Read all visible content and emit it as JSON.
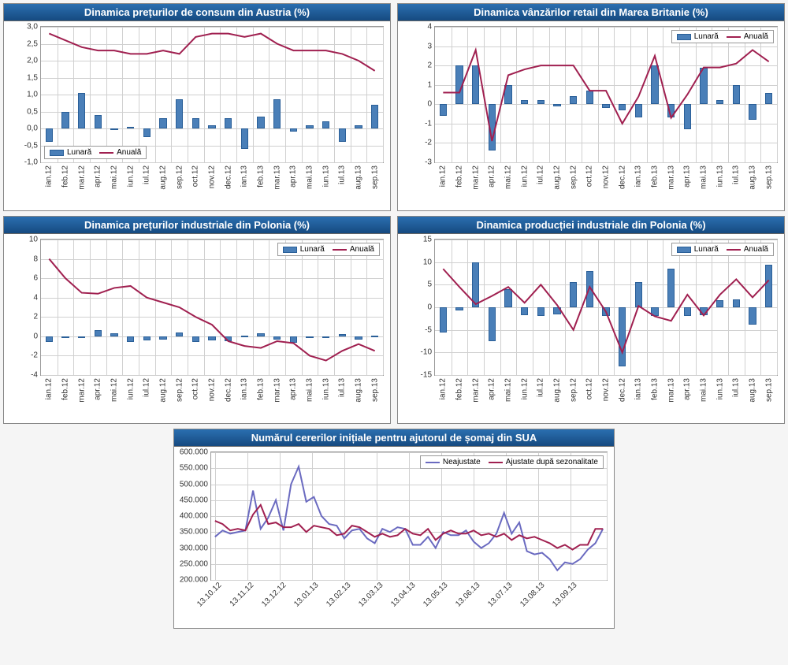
{
  "global": {
    "title_bg": "#1a5490",
    "title_color": "#ffffff",
    "title_fontsize": 13,
    "panel_bg": "#ffffff",
    "panel_border": "#888888",
    "grid_color": "#d0d0d0",
    "tick_fontsize": 10,
    "tick_color": "#333333",
    "bar_fill": "#4a7fb8",
    "bar_border": "#2a5f98",
    "line_primary": "#a02050",
    "line_secondary": "#6a6ac0",
    "legend_border": "#999999",
    "legend_bg": "#ffffff",
    "x_label_rotation": -90,
    "x_label_rotation_diag": -45
  },
  "months": [
    "ian.12",
    "feb.12",
    "mar.12",
    "apr.12",
    "mai.12",
    "iun.12",
    "iul.12",
    "aug.12",
    "sep.12",
    "oct.12",
    "nov.12",
    "dec.12",
    "ian.13",
    "feb.13",
    "mar.13",
    "apr.13",
    "mai.13",
    "iun.13",
    "iul.13",
    "aug.13",
    "sep.13"
  ],
  "charts": {
    "austria": {
      "type": "bar+line",
      "title": "Dinamica prețurilor de consum din Austria (%)",
      "ylim": [
        -1.0,
        3.0
      ],
      "ytick_step": 0.5,
      "yticks": [
        "-1,0",
        "-0,5",
        "0,0",
        "0,5",
        "1,0",
        "1,5",
        "2,0",
        "2,5",
        "3,0"
      ],
      "bars": [
        -0.4,
        0.5,
        1.05,
        0.4,
        -0.05,
        0.05,
        -0.25,
        0.3,
        0.85,
        0.3,
        0.1,
        0.3,
        -0.6,
        0.35,
        0.85,
        -0.1,
        0.1,
        0.2,
        -0.4,
        0.1,
        0.7
      ],
      "line": [
        2.8,
        2.6,
        2.4,
        2.3,
        2.3,
        2.2,
        2.2,
        2.3,
        2.2,
        2.7,
        2.8,
        2.8,
        2.7,
        2.8,
        2.5,
        2.3,
        2.3,
        2.3,
        2.2,
        2.0,
        1.7
      ],
      "legend": {
        "bar": "Lunară",
        "line": "Anuală",
        "position": "bottom-left"
      }
    },
    "uk_retail": {
      "type": "bar+line",
      "title": "Dinamica vânzărilor retail din Marea Britanie (%)",
      "ylim": [
        -3,
        4
      ],
      "ytick_step": 1,
      "yticks": [
        "-3",
        "-2",
        "-1",
        "0",
        "1",
        "2",
        "3",
        "4"
      ],
      "bars": [
        -0.6,
        2.0,
        2.0,
        -2.4,
        1.0,
        0.2,
        0.2,
        -0.1,
        0.4,
        0.7,
        -0.2,
        -0.3,
        -0.7,
        2.0,
        -0.7,
        -1.3,
        1.9,
        0.2,
        1.0,
        -0.8,
        0.6
      ],
      "line": [
        0.6,
        0.6,
        2.8,
        -1.9,
        1.5,
        1.8,
        2.0,
        2.0,
        2.0,
        0.7,
        0.7,
        -1.0,
        0.4,
        2.5,
        -0.7,
        0.5,
        1.9,
        1.9,
        2.1,
        2.8,
        2.2
      ],
      "legend": {
        "bar": "Lunară",
        "line": "Anuală",
        "position": "top-right"
      }
    },
    "poland_prices": {
      "type": "bar+line",
      "title": "Dinamica prețurilor industriale din Polonia (%)",
      "ylim": [
        -4,
        10
      ],
      "ytick_step": 2,
      "yticks": [
        "-4",
        "-2",
        "0",
        "2",
        "4",
        "6",
        "8",
        "10"
      ],
      "bars": [
        -0.6,
        -0.2,
        0.0,
        0.6,
        0.3,
        -0.6,
        -0.4,
        -0.3,
        0.4,
        -0.6,
        -0.4,
        -0.5,
        0.1,
        0.3,
        -0.3,
        -0.7,
        -0.1,
        0.0,
        0.2,
        -0.3,
        0.1
      ],
      "line": [
        8.0,
        6.0,
        4.5,
        4.4,
        5.0,
        5.2,
        4.0,
        3.5,
        3.0,
        2.0,
        1.2,
        -0.5,
        -1.0,
        -1.2,
        -0.5,
        -0.7,
        -2.0,
        -2.5,
        -1.5,
        -0.8,
        -1.5
      ],
      "legend": {
        "bar": "Lunară",
        "line": "Anuală",
        "position": "top-right"
      }
    },
    "poland_prod": {
      "type": "bar+line",
      "title": "Dinamica producției industriale din Polonia (%)",
      "ylim": [
        -15,
        15
      ],
      "ytick_step": 5,
      "yticks": [
        "-15",
        "-10",
        "-5",
        "0",
        "5",
        "10",
        "15"
      ],
      "bars": [
        -5.5,
        -0.7,
        10.0,
        -7.5,
        4.0,
        -1.8,
        -2.0,
        -1.5,
        5.5,
        8.0,
        -2.0,
        -13.0,
        5.5,
        -2.0,
        8.5,
        -2.0,
        -1.8,
        1.5,
        1.8,
        -3.8,
        9.5
      ],
      "line": [
        8.5,
        4.5,
        0.7,
        2.5,
        4.5,
        1.0,
        5.0,
        0.5,
        -5.0,
        4.5,
        -1.0,
        -10.0,
        0.3,
        -2.0,
        -3.0,
        2.8,
        -1.8,
        2.8,
        6.2,
        2.2,
        6.0
      ],
      "legend": {
        "bar": "Lunară",
        "line": "Anuală",
        "position": "top-right"
      }
    },
    "us_jobless": {
      "type": "2line",
      "title": "Numărul cererilor inițiale pentru ajutorul de șomaj din SUA",
      "ylim": [
        200000,
        600000
      ],
      "ytick_step": 50000,
      "yticks": [
        "200.000",
        "250.000",
        "300.000",
        "350.000",
        "400.000",
        "450.000",
        "500.000",
        "550.000",
        "600.000"
      ],
      "x_labels": [
        "13.10.12",
        "13.11.12",
        "13.12.12",
        "13.01.13",
        "13.02.13",
        "13.03.13",
        "13.04.13",
        "13.05.13",
        "13.06.13",
        "13.07.13",
        "13.08.13",
        "13.09.13"
      ],
      "series1_name": "Neajustate",
      "series1": [
        335000,
        355000,
        345000,
        350000,
        355000,
        480000,
        360000,
        395000,
        450000,
        355000,
        500000,
        555000,
        445000,
        460000,
        400000,
        375000,
        370000,
        330000,
        355000,
        360000,
        330000,
        315000,
        360000,
        350000,
        365000,
        360000,
        310000,
        310000,
        335000,
        300000,
        350000,
        340000,
        340000,
        355000,
        320000,
        300000,
        315000,
        345000,
        410000,
        345000,
        380000,
        290000,
        280000,
        285000,
        265000,
        230000,
        255000,
        250000,
        265000,
        295000,
        315000,
        360000
      ],
      "series2_name": "Ajustate după sezonalitate",
      "series2": [
        385000,
        375000,
        355000,
        360000,
        355000,
        405000,
        435000,
        375000,
        380000,
        365000,
        365000,
        375000,
        350000,
        370000,
        365000,
        360000,
        340000,
        345000,
        370000,
        365000,
        350000,
        335000,
        345000,
        335000,
        340000,
        360000,
        345000,
        340000,
        360000,
        325000,
        345000,
        355000,
        345000,
        345000,
        355000,
        340000,
        345000,
        335000,
        345000,
        325000,
        340000,
        330000,
        335000,
        325000,
        315000,
        300000,
        310000,
        295000,
        310000,
        310000,
        360000,
        360000
      ],
      "line1_color": "#6a6ac0",
      "line2_color": "#a02050",
      "legend": {
        "position": "top-right"
      }
    }
  }
}
